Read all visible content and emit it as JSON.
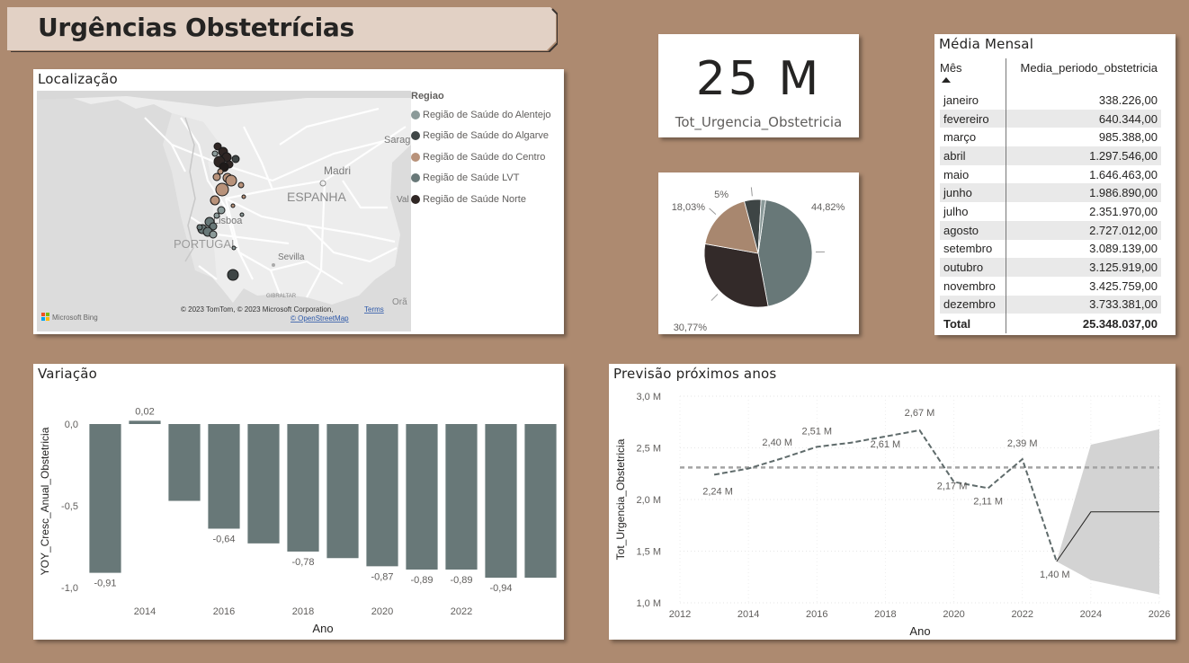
{
  "header": {
    "title": "Urgências Obstetrícias"
  },
  "map": {
    "title": "Localização",
    "legend_title": "Regiao",
    "legend": [
      {
        "label": "Região de Saúde do Alentejo",
        "color": "#8b9a99"
      },
      {
        "label": "Região de Saúde do Algarve",
        "color": "#3e4545"
      },
      {
        "label": "Região de Saúde do Centro",
        "color": "#b8927a"
      },
      {
        "label": "Região de Saúde LVT",
        "color": "#687878"
      },
      {
        "label": "Região de Saúde Norte",
        "color": "#2f2624"
      }
    ],
    "place_labels": {
      "spain": "ESPANHA",
      "portugal": "PORTUGAL",
      "madrid": "Madri",
      "sevilla": "Sevilla",
      "lisboa": "Lisboa",
      "zaragoza": "Sarag",
      "valencia": "Val",
      "gibraltar": "GIBRALTAR",
      "oran": "Orã"
    },
    "attribution": "© 2023 TomTom, © 2023 Microsoft Corporation,",
    "terms": "Terms",
    "osm": "© OpenStreetMap",
    "provider": "Microsoft Bing"
  },
  "kpi": {
    "value": "25 M",
    "label": "Tot_Urgencia_Obstetricia"
  },
  "pie": {
    "chart_data": {
      "type": "pie",
      "labels": [
        "44,82%",
        "30,77%",
        "18,03%",
        "5%",
        ""
      ],
      "values": [
        44.82,
        30.77,
        18.03,
        5.0,
        1.38
      ],
      "colors": [
        "#687878",
        "#332a29",
        "#a8876f",
        "#3e4545",
        "#8b9a99"
      ]
    }
  },
  "table": {
    "title": "Média Mensal",
    "columns": [
      "Mês",
      "Media_periodo_obstetricia"
    ],
    "rows": [
      [
        "janeiro",
        "338.226,00"
      ],
      [
        "fevereiro",
        "640.344,00"
      ],
      [
        "março",
        "985.388,00"
      ],
      [
        "abril",
        "1.297.546,00"
      ],
      [
        "maio",
        "1.646.463,00"
      ],
      [
        "junho",
        "1.986.890,00"
      ],
      [
        "julho",
        "2.351.970,00"
      ],
      [
        "agosto",
        "2.727.012,00"
      ],
      [
        "setembro",
        "3.089.139,00"
      ],
      [
        "outubro",
        "3.125.919,00"
      ],
      [
        "novembro",
        "3.425.759,00"
      ],
      [
        "dezembro",
        "3.733.381,00"
      ]
    ],
    "total_label": "Total",
    "total_value": "25.348.037,00"
  },
  "variacao": {
    "title": "Variação",
    "chart_data": {
      "type": "bar",
      "categories": [
        "2012",
        "2013",
        "2014",
        "2015",
        "2016",
        "2017",
        "2018",
        "2019",
        "2020",
        "2021",
        "2022",
        "2023"
      ],
      "values": [
        -0.91,
        0.02,
        -0.47,
        -0.64,
        -0.73,
        -0.78,
        -0.82,
        -0.87,
        -0.89,
        -0.89,
        -0.94,
        -0.94
      ],
      "data_labels": [
        "-0,91",
        "0,02",
        "",
        "-0,64",
        "",
        "-0,78",
        "",
        "-0,87",
        "-0,89",
        "-0,89",
        "-0,94",
        ""
      ],
      "xticks": [
        "2014",
        "2016",
        "2018",
        "2020",
        "2022"
      ],
      "yticks": [
        "0,0",
        "-0,5",
        "-1,0"
      ],
      "xlabel": "Ano",
      "ylabel": "YOY_Cresc_Anual_Obstetricia",
      "ylim": [
        -1.0,
        0.02
      ],
      "color": "#687878"
    }
  },
  "previsao": {
    "title": "Previsão próximos anos",
    "chart_data": {
      "type": "line",
      "x": [
        2013,
        2014,
        2015,
        2016,
        2017,
        2018,
        2019,
        2020,
        2021,
        2022,
        2023
      ],
      "values": [
        2.24,
        2.3,
        2.4,
        2.51,
        2.55,
        2.61,
        2.67,
        2.17,
        2.11,
        2.39,
        1.4
      ],
      "data_labels": [
        "2,24 M",
        "",
        "2,40 M",
        "2,51 M",
        "",
        "2,61 M",
        "2,67 M",
        "2,17 M",
        "2,11 M",
        "2,39 M",
        "1,40 M"
      ],
      "forecast_x": [
        2023,
        2024,
        2026
      ],
      "forecast_values": [
        1.4,
        1.88,
        1.88
      ],
      "forecast_upper": [
        1.4,
        2.53,
        2.68
      ],
      "forecast_lower": [
        1.4,
        1.22,
        1.08
      ],
      "average": 2.31,
      "xticks": [
        "2012",
        "2014",
        "2016",
        "2018",
        "2020",
        "2022",
        "2024",
        "2026"
      ],
      "yticks": [
        "3,0 M",
        "2,5 M",
        "2,0 M",
        "1,5 M",
        "1,0 M"
      ],
      "xlabel": "Ano",
      "ylabel": "Tot_Urgencia_Obstetricia",
      "ylim": [
        1.0,
        3.0
      ],
      "xlim": [
        2012,
        2026
      ]
    }
  }
}
